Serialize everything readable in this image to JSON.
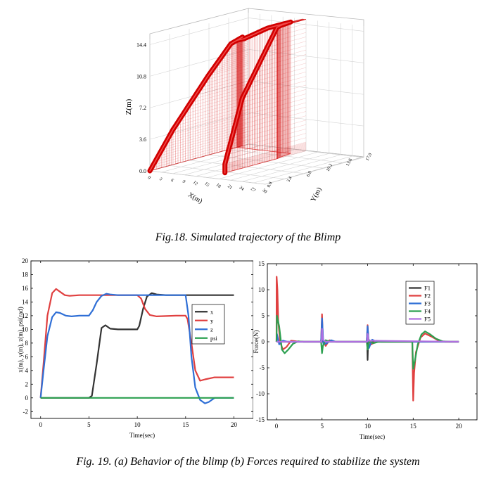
{
  "figure18": {
    "caption": "Fig.18. Simulated trajectory of the Blimp",
    "chart_data": {
      "type": "line3d",
      "title": "",
      "zlabel": "Z(m)",
      "xlabel": "X(m)",
      "ylabel": "Y(m)",
      "z_ticks": [
        "0.0",
        "3.6",
        "7.2",
        "10.8",
        "14.4"
      ],
      "x_ticks": [
        "0",
        "3",
        "6",
        "9",
        "12",
        "15",
        "18",
        "21",
        "24",
        "27",
        "30"
      ],
      "y_ticks": [
        "0.0",
        "3.4",
        "6.8",
        "10.2",
        "13.6",
        "17.0"
      ],
      "trajectory_color": "#d10000",
      "trajectory": {
        "x": [
          0,
          0,
          0,
          0,
          0,
          0,
          2,
          8,
          14,
          14.5,
          15,
          15,
          15,
          15,
          15
        ],
        "y": [
          0,
          4,
          10,
          14,
          16,
          15,
          15,
          15,
          15,
          13,
          12,
          12,
          6,
          3,
          3
        ],
        "z": [
          0,
          4,
          9,
          12,
          12.4,
          12.2,
          12.5,
          14,
          15,
          15,
          15,
          15,
          8,
          1,
          0
        ]
      }
    }
  },
  "figure19": {
    "caption": "Fig. 19. (a) Behavior of the blimp (b) Forces required to stabilize the system",
    "chart_data": [
      {
        "type": "line",
        "xlabel": "Time(sec)",
        "ylabel": "x(m), y(m), z(m), psi(rad)",
        "xlim": [
          -1,
          22
        ],
        "ylim": [
          -3,
          20
        ],
        "x_ticks": [
          0,
          5,
          10,
          15,
          20
        ],
        "y_ticks": [
          -2,
          0,
          2,
          4,
          6,
          8,
          10,
          12,
          14,
          16,
          18,
          20
        ],
        "legend_position": "right",
        "series": [
          {
            "name": "x",
            "color": "#333333",
            "x": [
              0,
              5,
              5.3,
              5.8,
              6.3,
              6.7,
              7.2,
              8,
              9,
              10,
              10.2,
              10.6,
              11,
              11.5,
              12,
              13,
              15,
              20
            ],
            "y": [
              0,
              0,
              0.3,
              5,
              10.2,
              10.6,
              10.1,
              10,
              10,
              10,
              10.5,
              13,
              14.8,
              15.3,
              15.1,
              15,
              15,
              15
            ]
          },
          {
            "name": "y",
            "color": "#e04040",
            "x": [
              0,
              0.3,
              0.7,
              1.2,
              1.6,
              2,
              2.5,
              3,
              4,
              5,
              10,
              10.4,
              10.8,
              11.3,
              12,
              14,
              15,
              15.2,
              15.6,
              16,
              16.5,
              17,
              18,
              20
            ],
            "y": [
              0,
              5,
              12,
              15.3,
              15.9,
              15.5,
              15,
              14.9,
              15,
              15,
              15,
              14.5,
              13,
              12.1,
              11.9,
              12,
              12,
              11.5,
              8,
              4,
              2.5,
              2.7,
              3,
              3
            ]
          },
          {
            "name": "z",
            "color": "#2f6fd6",
            "x": [
              0,
              0.3,
              0.7,
              1.2,
              1.6,
              2,
              2.6,
              3.2,
              4,
              5,
              5.4,
              5.8,
              6.3,
              6.8,
              7.2,
              8,
              10,
              15,
              15.3,
              15.6,
              16,
              16.5,
              17,
              17.4,
              18,
              19,
              20
            ],
            "y": [
              0,
              4,
              9,
              11.8,
              12.5,
              12.4,
              12,
              11.9,
              12,
              12,
              12.8,
              14,
              14.9,
              15.2,
              15.1,
              15,
              15,
              15,
              12,
              6,
              1.5,
              -0.3,
              -0.8,
              -0.6,
              0,
              0,
              0
            ]
          },
          {
            "name": "psi",
            "color": "#2ca050",
            "x": [
              0,
              20
            ],
            "y": [
              0,
              0
            ]
          }
        ]
      },
      {
        "type": "line",
        "xlabel": "Time(sec)",
        "ylabel": "Force(N)",
        "xlim": [
          -1,
          22
        ],
        "ylim": [
          -15,
          15
        ],
        "x_ticks": [
          0,
          5,
          10,
          15,
          20
        ],
        "y_ticks": [
          -15,
          -10,
          -5,
          0,
          5,
          10,
          15
        ],
        "legend_position": "top-right",
        "series": [
          {
            "name": "F1",
            "color": "#333333",
            "x": [
              0,
              4.95,
              5,
              5.05,
              9.95,
              10,
              10.05,
              20
            ],
            "y": [
              0,
              0,
              0.3,
              0,
              0,
              -3.5,
              0,
              0
            ]
          },
          {
            "name": "F2",
            "color": "#e04040",
            "x": [
              0,
              0.02,
              0.1,
              0.2,
              0.4,
              0.7,
              1.1,
              1.6,
              2.2,
              3,
              4.9,
              5,
              5.1,
              5.4,
              5.8,
              6.5,
              7,
              9.9,
              10,
              10.1,
              10.4,
              11,
              11.5,
              14.9,
              15,
              15.1,
              15.3,
              15.8,
              16.3,
              17,
              17.8,
              18.5,
              20
            ],
            "y": [
              0,
              12.5,
              10,
              4,
              0,
              -1.5,
              -1,
              0.2,
              0.1,
              0,
              0,
              5.3,
              0.5,
              -0.8,
              0.3,
              0,
              0,
              0,
              3.2,
              0.2,
              -0.5,
              0.2,
              0,
              0,
              -11.3,
              -6,
              -2,
              0.8,
              1.6,
              1,
              0.2,
              0,
              0
            ]
          },
          {
            "name": "F3",
            "color": "#2f6fd6",
            "x": [
              0,
              0.05,
              0.3,
              0.7,
              1.2,
              2,
              4.9,
              5,
              5.15,
              5.5,
              6,
              6.5,
              9.9,
              10,
              10.15,
              10.5,
              11,
              14.9,
              15,
              20
            ],
            "y": [
              0,
              1.5,
              -0.5,
              0.2,
              0,
              0,
              0,
              4.5,
              -0.5,
              -0.3,
              0.3,
              0,
              0,
              3,
              -1.2,
              0.4,
              0,
              0,
              0,
              0
            ]
          },
          {
            "name": "F4",
            "color": "#2ca050",
            "x": [
              0,
              0.05,
              0.3,
              0.6,
              0.9,
              1.3,
              1.8,
              2.4,
              3,
              4.9,
              5,
              5.1,
              5.4,
              5.9,
              6.5,
              9.9,
              10,
              10.2,
              10.6,
              11.2,
              14.9,
              15,
              15.2,
              15.5,
              15.9,
              16.3,
              16.8,
              17.5,
              18.2,
              19,
              20
            ],
            "y": [
              0,
              5,
              3,
              -1.5,
              -2.2,
              -1.5,
              -0.4,
              0.1,
              0,
              0,
              -2.2,
              -0.8,
              0.3,
              0,
              0,
              0,
              -1.5,
              0.3,
              -0.3,
              0,
              0,
              -5.2,
              -3.5,
              -0.5,
              1.4,
              2,
              1.5,
              0.6,
              0.1,
              0,
              0
            ]
          },
          {
            "name": "F5",
            "color": "#b070e0",
            "x": [
              0,
              4.95,
              5,
              5.1,
              5.4,
              9.95,
              10,
              10.1,
              20
            ],
            "y": [
              0,
              0,
              2.5,
              0.4,
              0,
              0,
              1.5,
              0.2,
              0
            ]
          }
        ]
      }
    ]
  }
}
